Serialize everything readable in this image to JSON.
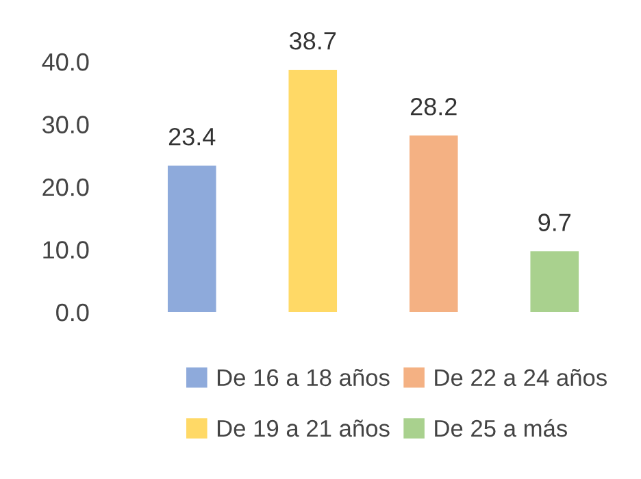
{
  "chart_data": {
    "type": "bar",
    "stacked": true,
    "categories": [
      null,
      null,
      null,
      null
    ],
    "series": [
      {
        "name": "De 16 a 18 años",
        "color": "#8eaadb",
        "values": [
          23.4,
          null,
          null,
          null
        ]
      },
      {
        "name": "De 19 a 21 años",
        "color": "#ffd966",
        "values": [
          null,
          38.7,
          null,
          null
        ]
      },
      {
        "name": "De 22 a 24 años",
        "color": "#f4b183",
        "values": [
          null,
          null,
          28.2,
          null
        ]
      },
      {
        "name": "De 25 a más",
        "color": "#a9d18e",
        "values": [
          null,
          null,
          null,
          9.7
        ]
      }
    ],
    "ylim": [
      0,
      40
    ],
    "yticks": [
      {
        "value": 0,
        "label": "0.0"
      },
      {
        "value": 10,
        "label": "10.0"
      },
      {
        "value": 20,
        "label": "20.0"
      },
      {
        "value": 30,
        "label": "30.0"
      },
      {
        "value": 40,
        "label": "40.0"
      }
    ],
    "data_labels": true,
    "grid": false,
    "legend": "bottom"
  }
}
